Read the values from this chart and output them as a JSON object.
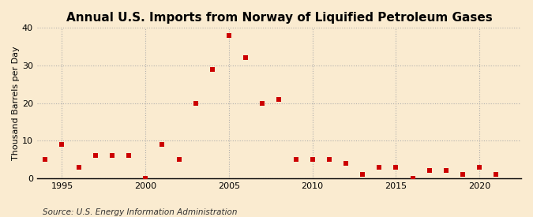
{
  "title": "Annual U.S. Imports from Norway of Liquified Petroleum Gases",
  "ylabel": "Thousand Barrels per Day",
  "source": "Source: U.S. Energy Information Administration",
  "years": [
    1994,
    1995,
    1996,
    1997,
    1998,
    1999,
    2000,
    2001,
    2002,
    2003,
    2004,
    2005,
    2006,
    2007,
    2008,
    2009,
    2010,
    2011,
    2012,
    2013,
    2014,
    2015,
    2016,
    2017,
    2018,
    2019,
    2020,
    2021
  ],
  "values": [
    5,
    9,
    3,
    6,
    6,
    6,
    0,
    9,
    5,
    20,
    29,
    38,
    32,
    20,
    21,
    5,
    5,
    5,
    4,
    1,
    3,
    3,
    0,
    2,
    2,
    1,
    3,
    1
  ],
  "marker_color": "#cc0000",
  "marker_size": 5,
  "bg_color": "#faebd0",
  "plot_bg_color": "#faebd0",
  "grid_color": "#aaaaaa",
  "xlim": [
    1993.5,
    2022.5
  ],
  "ylim": [
    0,
    40
  ],
  "yticks": [
    0,
    10,
    20,
    30,
    40
  ],
  "xticks": [
    1995,
    2000,
    2005,
    2010,
    2015,
    2020
  ],
  "title_fontsize": 11,
  "label_fontsize": 8,
  "source_fontsize": 7.5
}
